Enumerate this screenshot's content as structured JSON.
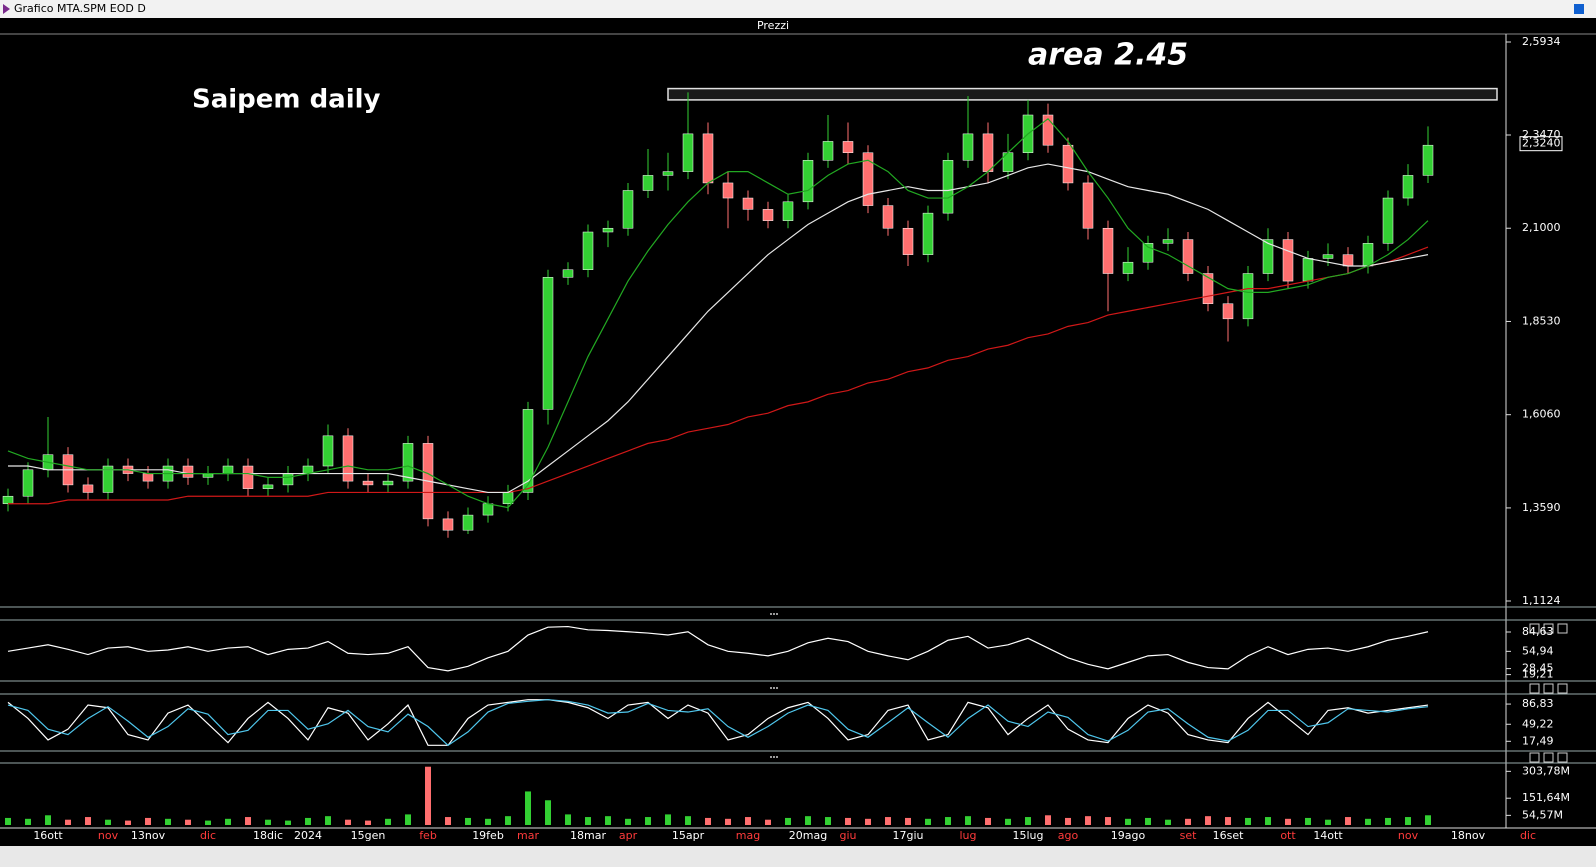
{
  "window": {
    "title": "Grafico MTA.SPM EOD D",
    "panel_title": "Prezzi"
  },
  "chart_data": [
    {
      "type": "candlestick",
      "title": "Saipem daily",
      "annotation": "area 2.45",
      "categories": [
        null,
        null,
        "16ott",
        null,
        null,
        "nov",
        null,
        "13nov",
        null,
        null,
        "dic",
        null,
        null,
        "18dic",
        null,
        "2024",
        null,
        null,
        "15gen",
        null,
        null,
        "feb",
        null,
        null,
        "19feb",
        null,
        "mar",
        null,
        null,
        "18mar",
        null,
        "apr",
        null,
        null,
        "15apr",
        null,
        null,
        "mag",
        null,
        null,
        "20mag",
        null,
        "giu",
        null,
        null,
        "17giu",
        null,
        null,
        "lug",
        null,
        null,
        "15lug",
        null,
        "ago",
        null,
        null,
        "19ago",
        null,
        null,
        "set",
        null,
        "16set",
        null,
        null,
        "ott",
        null,
        "14ott",
        null,
        null,
        null,
        "nov",
        null,
        null,
        "18nov",
        null,
        null,
        "dic"
      ],
      "open": [
        1.37,
        1.39,
        1.46,
        1.5,
        1.42,
        1.4,
        1.47,
        1.45,
        1.43,
        1.47,
        1.44,
        1.45,
        1.47,
        1.41,
        1.42,
        1.45,
        1.47,
        1.55,
        1.43,
        1.42,
        1.43,
        1.53,
        1.33,
        1.3,
        1.34,
        1.37,
        1.4,
        1.62,
        1.97,
        1.99,
        2.09,
        2.1,
        2.2,
        2.24,
        2.25,
        2.35,
        2.22,
        2.18,
        2.15,
        2.12,
        2.17,
        2.28,
        2.33,
        2.3,
        2.16,
        2.1,
        2.03,
        2.14,
        2.28,
        2.35,
        2.25,
        2.3,
        2.4,
        2.32,
        2.22,
        2.1,
        1.98,
        2.01,
        2.06,
        2.07,
        1.98,
        1.9,
        1.86,
        1.98,
        2.07,
        1.96,
        2.02,
        2.03,
        2.0,
        2.06,
        2.18,
        2.24,
        null,
        null,
        null,
        null,
        null
      ],
      "high": [
        1.41,
        1.48,
        1.6,
        1.52,
        1.44,
        1.49,
        1.49,
        1.47,
        1.49,
        1.49,
        1.47,
        1.49,
        1.49,
        1.44,
        1.47,
        1.49,
        1.58,
        1.57,
        1.45,
        1.45,
        1.55,
        1.55,
        1.35,
        1.36,
        1.39,
        1.42,
        1.64,
        1.99,
        2.01,
        2.11,
        2.12,
        2.22,
        2.31,
        2.3,
        2.46,
        2.38,
        2.25,
        2.2,
        2.17,
        2.19,
        2.3,
        2.4,
        2.38,
        2.32,
        2.18,
        2.12,
        2.16,
        2.3,
        2.45,
        2.38,
        2.35,
        2.44,
        2.43,
        2.34,
        2.24,
        2.12,
        2.05,
        2.08,
        2.1,
        2.09,
        2.0,
        1.92,
        2.0,
        2.1,
        2.09,
        2.04,
        2.06,
        2.05,
        2.08,
        2.2,
        2.27,
        2.37,
        null,
        null,
        null,
        null,
        null
      ],
      "low": [
        1.35,
        1.37,
        1.44,
        1.4,
        1.38,
        1.38,
        1.43,
        1.41,
        1.41,
        1.42,
        1.42,
        1.43,
        1.39,
        1.39,
        1.4,
        1.43,
        1.45,
        1.41,
        1.4,
        1.4,
        1.41,
        1.31,
        1.28,
        1.29,
        1.32,
        1.35,
        1.38,
        1.58,
        1.95,
        1.97,
        2.05,
        2.08,
        2.18,
        2.2,
        2.23,
        2.19,
        2.1,
        2.12,
        2.1,
        2.1,
        2.15,
        2.26,
        2.27,
        2.14,
        2.08,
        2.0,
        2.01,
        2.12,
        2.26,
        2.22,
        2.23,
        2.28,
        2.3,
        2.2,
        2.07,
        1.88,
        1.96,
        1.99,
        2.04,
        1.96,
        1.88,
        1.8,
        1.84,
        1.96,
        1.94,
        1.94,
        2.0,
        1.98,
        1.98,
        2.04,
        2.16,
        2.22,
        null,
        null,
        null,
        null,
        null
      ],
      "close": [
        1.39,
        1.46,
        1.5,
        1.42,
        1.4,
        1.47,
        1.45,
        1.43,
        1.47,
        1.44,
        1.45,
        1.47,
        1.41,
        1.42,
        1.45,
        1.47,
        1.55,
        1.43,
        1.42,
        1.43,
        1.53,
        1.33,
        1.3,
        1.34,
        1.37,
        1.4,
        1.62,
        1.97,
        1.99,
        2.09,
        2.1,
        2.2,
        2.24,
        2.25,
        2.35,
        2.22,
        2.18,
        2.15,
        2.12,
        2.17,
        2.28,
        2.33,
        2.3,
        2.16,
        2.1,
        2.03,
        2.14,
        2.28,
        2.35,
        2.25,
        2.3,
        2.4,
        2.32,
        2.22,
        2.1,
        1.98,
        2.01,
        2.06,
        2.07,
        1.98,
        1.9,
        1.86,
        1.98,
        2.07,
        1.96,
        2.02,
        2.03,
        2.0,
        2.06,
        2.18,
        2.24,
        2.32,
        null,
        null,
        null,
        null,
        null
      ],
      "up_color": "#33d033",
      "down_color": "#ff6f6f",
      "series": [
        {
          "color": "#d01818",
          "values": [
            1.37,
            1.37,
            1.37,
            1.38,
            1.38,
            1.38,
            1.38,
            1.38,
            1.38,
            1.39,
            1.39,
            1.39,
            1.39,
            1.39,
            1.39,
            1.39,
            1.4,
            1.4,
            1.4,
            1.4,
            1.4,
            1.4,
            1.4,
            1.4,
            1.4,
            1.4,
            1.41,
            1.43,
            1.45,
            1.47,
            1.49,
            1.51,
            1.53,
            1.54,
            1.56,
            1.57,
            1.58,
            1.6,
            1.61,
            1.63,
            1.64,
            1.66,
            1.67,
            1.69,
            1.7,
            1.72,
            1.73,
            1.75,
            1.76,
            1.78,
            1.79,
            1.81,
            1.82,
            1.84,
            1.85,
            1.87,
            1.88,
            1.89,
            1.9,
            1.91,
            1.92,
            1.93,
            1.94,
            1.94,
            1.95,
            1.96,
            1.97,
            1.98,
            2.0,
            2.01,
            2.03,
            2.05,
            null,
            null,
            null,
            null,
            null
          ]
        },
        {
          "color": "#e6e6e6",
          "values": [
            1.47,
            1.47,
            1.46,
            1.46,
            1.46,
            1.46,
            1.46,
            1.46,
            1.46,
            1.45,
            1.45,
            1.45,
            1.45,
            1.45,
            1.45,
            1.45,
            1.45,
            1.45,
            1.45,
            1.45,
            1.44,
            1.43,
            1.42,
            1.41,
            1.4,
            1.4,
            1.43,
            1.47,
            1.51,
            1.55,
            1.59,
            1.64,
            1.7,
            1.76,
            1.82,
            1.88,
            1.93,
            1.98,
            2.03,
            2.07,
            2.11,
            2.14,
            2.17,
            2.19,
            2.2,
            2.21,
            2.2,
            2.2,
            2.21,
            2.22,
            2.24,
            2.26,
            2.27,
            2.26,
            2.25,
            2.23,
            2.21,
            2.2,
            2.19,
            2.17,
            2.15,
            2.12,
            2.09,
            2.06,
            2.04,
            2.02,
            2.01,
            2.0,
            2.0,
            2.01,
            2.02,
            2.03,
            null,
            null,
            null,
            null,
            null
          ]
        },
        {
          "color": "#22a822",
          "values": [
            1.51,
            1.49,
            1.48,
            1.47,
            1.46,
            1.46,
            1.46,
            1.45,
            1.45,
            1.45,
            1.45,
            1.45,
            1.45,
            1.44,
            1.44,
            1.45,
            1.46,
            1.47,
            1.46,
            1.46,
            1.47,
            1.45,
            1.42,
            1.39,
            1.37,
            1.36,
            1.42,
            1.52,
            1.64,
            1.76,
            1.86,
            1.96,
            2.04,
            2.11,
            2.17,
            2.22,
            2.25,
            2.25,
            2.22,
            2.19,
            2.2,
            2.24,
            2.27,
            2.28,
            2.25,
            2.2,
            2.18,
            2.18,
            2.21,
            2.25,
            2.3,
            2.35,
            2.39,
            2.33,
            2.25,
            2.18,
            2.1,
            2.05,
            2.03,
            2.0,
            1.97,
            1.94,
            1.93,
            1.93,
            1.94,
            1.95,
            1.97,
            1.98,
            2.0,
            2.03,
            2.07,
            2.12,
            null,
            null,
            null,
            null,
            null
          ]
        }
      ],
      "band": [
        2.44,
        2.47
      ],
      "ylim": [
        1.1124,
        2.5934
      ],
      "yticks": [
        {
          "value": 2.5934,
          "label": "2,5934"
        },
        {
          "value": 2.347,
          "label": "2,3470"
        },
        {
          "value": 2.1,
          "label": "2,1000"
        },
        {
          "value": 1.853,
          "label": "1,8530"
        },
        {
          "value": 1.606,
          "label": "1,6060"
        },
        {
          "value": 1.359,
          "label": "1,3590"
        },
        {
          "value": 1.1124,
          "label": "1,1124"
        }
      ],
      "last_price": {
        "value": 2.324,
        "label": "2,3240"
      }
    },
    {
      "type": "line",
      "color": "#ffffff",
      "values": [
        55,
        60,
        65,
        58,
        50,
        60,
        62,
        55,
        57,
        62,
        55,
        60,
        62,
        50,
        58,
        60,
        70,
        52,
        50,
        52,
        62,
        30,
        25,
        32,
        45,
        55,
        80,
        92,
        93,
        88,
        87,
        85,
        83,
        80,
        85,
        65,
        55,
        52,
        48,
        55,
        68,
        75,
        70,
        55,
        48,
        42,
        55,
        72,
        78,
        60,
        65,
        75,
        60,
        45,
        35,
        28,
        38,
        48,
        50,
        38,
        30,
        28,
        48,
        62,
        50,
        58,
        60,
        55,
        62,
        72,
        78,
        85,
        null,
        null,
        null,
        null,
        null
      ],
      "ylim": [
        14,
        100
      ],
      "yticks": [
        {
          "value": 84.63,
          "label": "84,63"
        },
        {
          "value": 54.94,
          "label": "54,94"
        },
        {
          "value": 28.45,
          "label": "28,45"
        },
        {
          "value": 19.21,
          "label": "19,21"
        }
      ]
    },
    {
      "type": "line",
      "series": [
        {
          "color": "#ffffff",
          "values": [
            90,
            60,
            20,
            40,
            85,
            80,
            30,
            20,
            70,
            85,
            50,
            15,
            60,
            90,
            60,
            20,
            80,
            70,
            20,
            50,
            85,
            10,
            10,
            60,
            85,
            90,
            95,
            95,
            90,
            80,
            60,
            85,
            90,
            60,
            85,
            70,
            20,
            30,
            60,
            80,
            90,
            60,
            20,
            30,
            75,
            85,
            20,
            30,
            90,
            80,
            30,
            60,
            85,
            40,
            20,
            15,
            60,
            85,
            70,
            30,
            20,
            15,
            60,
            90,
            60,
            30,
            75,
            80,
            70,
            75,
            80,
            85,
            null,
            null,
            null,
            null,
            null
          ]
        },
        {
          "color": "#4fc6ec",
          "values": [
            85,
            75,
            40,
            30,
            60,
            82,
            55,
            25,
            45,
            78,
            68,
            30,
            38,
            75,
            75,
            40,
            50,
            75,
            45,
            35,
            68,
            45,
            10,
            35,
            72,
            88,
            92,
            95,
            92,
            85,
            70,
            72,
            88,
            75,
            72,
            78,
            45,
            25,
            45,
            70,
            85,
            75,
            40,
            25,
            52,
            80,
            52,
            25,
            60,
            85,
            55,
            45,
            72,
            62,
            30,
            18,
            38,
            72,
            78,
            50,
            25,
            18,
            38,
            75,
            75,
            45,
            52,
            78,
            75,
            72,
            78,
            82,
            null,
            null,
            null,
            null,
            null
          ]
        }
      ],
      "ylim": [
        5,
        100
      ],
      "yticks": [
        {
          "value": 86.83,
          "label": "86,83"
        },
        {
          "value": 49.22,
          "label": "49,22"
        },
        {
          "value": 17.49,
          "label": "17,49"
        }
      ]
    },
    {
      "type": "bar",
      "values": [
        40,
        35,
        55,
        30,
        45,
        30,
        25,
        40,
        35,
        30,
        25,
        35,
        45,
        30,
        25,
        40,
        50,
        30,
        25,
        35,
        60,
        330,
        45,
        40,
        35,
        50,
        190,
        140,
        60,
        45,
        50,
        35,
        45,
        60,
        50,
        40,
        35,
        45,
        30,
        40,
        50,
        45,
        40,
        35,
        45,
        40,
        35,
        45,
        50,
        40,
        35,
        45,
        55,
        40,
        50,
        45,
        35,
        40,
        30,
        35,
        50,
        45,
        40,
        45,
        35,
        40,
        30,
        45,
        35,
        40,
        45,
        55,
        null,
        null,
        null,
        null,
        null
      ],
      "ylim": [
        0,
        334
      ],
      "yticks": [
        {
          "value": 303.78,
          "label": "303,78M"
        },
        {
          "value": 151.64,
          "label": "151,64M"
        },
        {
          "value": 54.57,
          "label": "54,57M"
        }
      ]
    }
  ]
}
